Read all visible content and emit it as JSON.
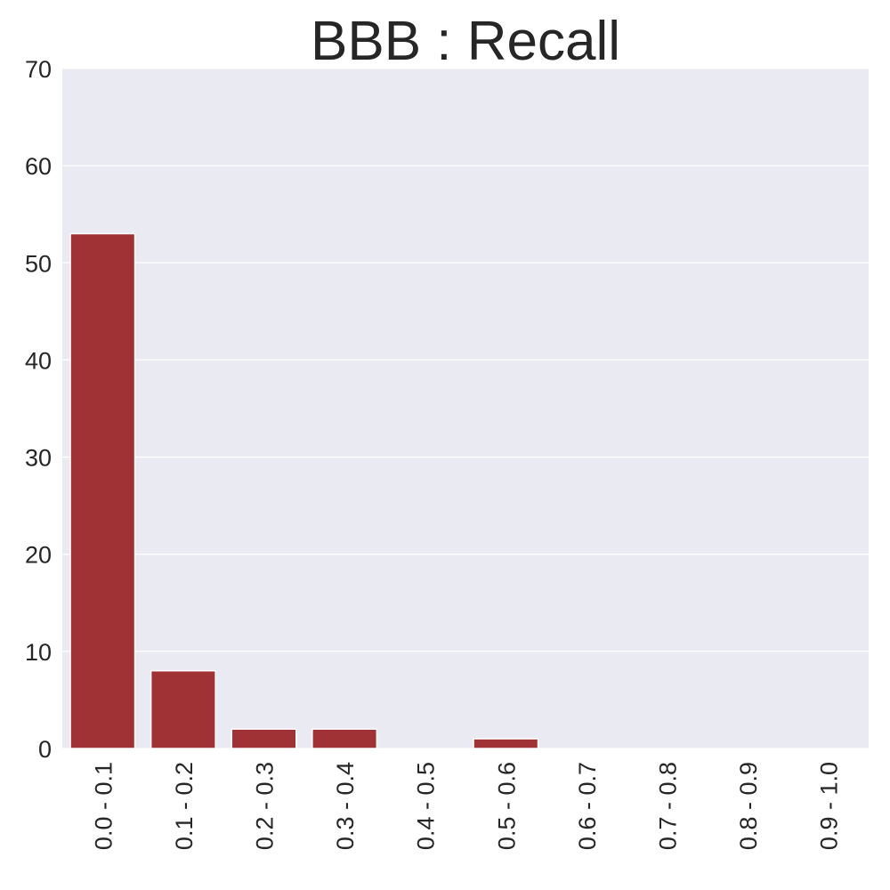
{
  "chart_data": {
    "type": "bar",
    "title": "BBB : Recall",
    "xlabel": "",
    "ylabel": "",
    "categories": [
      "0.0 - 0.1",
      "0.1 - 0.2",
      "0.2 - 0.3",
      "0.3 - 0.4",
      "0.4 - 0.5",
      "0.5 - 0.6",
      "0.6 - 0.7",
      "0.7 - 0.8",
      "0.8 - 0.9",
      "0.9 - 1.0"
    ],
    "values": [
      53,
      8,
      2,
      2,
      0,
      1,
      0,
      0,
      0,
      0
    ],
    "ylim": [
      0,
      70
    ],
    "yticks": [
      0,
      10,
      20,
      30,
      40,
      50,
      60,
      70
    ],
    "grid": true,
    "bar_color": "#a03134",
    "background_color": "#eaeaf2",
    "grid_color": "#ffffff"
  }
}
